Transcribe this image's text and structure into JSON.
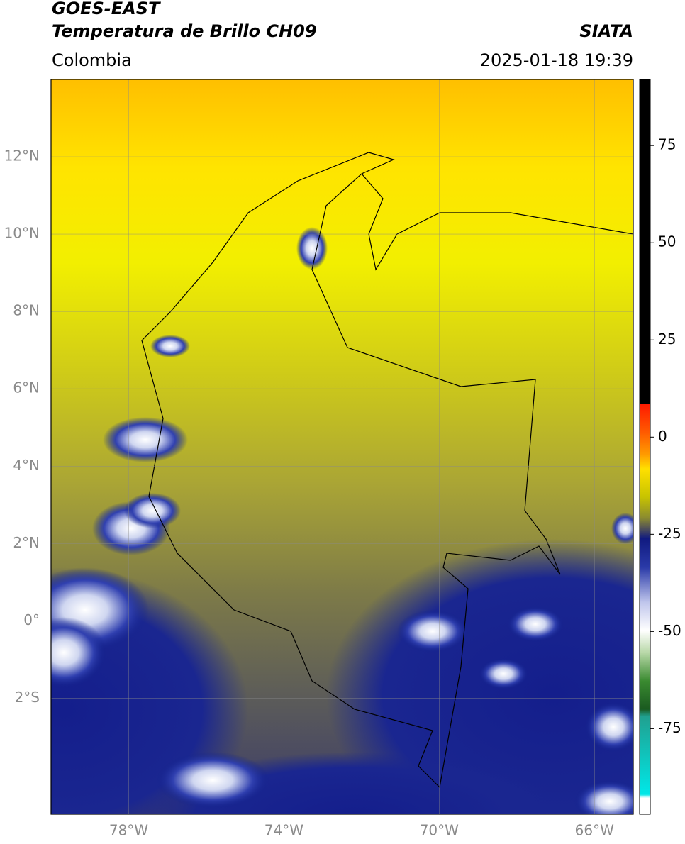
{
  "header": {
    "satellite": "GOES-EAST",
    "product": "Temperatura de Brillo CH09",
    "source": "SIATA",
    "region": "Colombia",
    "timestamp": "2025-01-18 19:39"
  },
  "map": {
    "xlim": [
      -80,
      -65
    ],
    "ylim": [
      -5,
      14
    ],
    "xticks": [
      {
        "value": -78,
        "label": "78°W"
      },
      {
        "value": -74,
        "label": "74°W"
      },
      {
        "value": -70,
        "label": "70°W"
      },
      {
        "value": -66,
        "label": "66°W"
      }
    ],
    "yticks": [
      {
        "value": 12,
        "label": "12°N"
      },
      {
        "value": 10,
        "label": "10°N"
      },
      {
        "value": 8,
        "label": "8°N"
      },
      {
        "value": 6,
        "label": "6°N"
      },
      {
        "value": 4,
        "label": "4°N"
      },
      {
        "value": 2,
        "label": "2°N"
      },
      {
        "value": 0,
        "label": "0°"
      },
      {
        "value": -2,
        "label": "2°S"
      }
    ]
  },
  "colorbar": {
    "lim": [
      -97,
      92
    ],
    "ticks": [
      75,
      50,
      25,
      0,
      -25,
      -50,
      -75
    ]
  }
}
